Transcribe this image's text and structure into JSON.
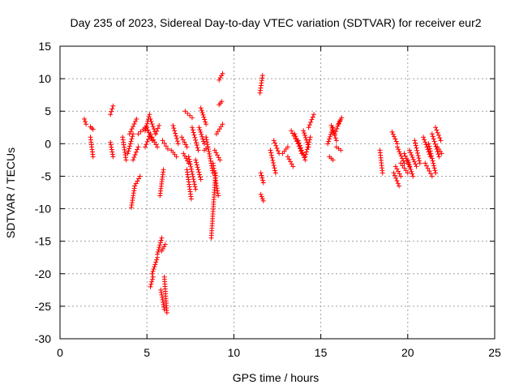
{
  "chart_data": {
    "type": "scatter",
    "title": "Day 235 of 2023, Sidereal Day-to-day VTEC variation (SDTVAR) for receiver eur2",
    "xlabel": "GPS time / hours",
    "ylabel": "SDTVAR / TECUs",
    "xlim": [
      0,
      25
    ],
    "ylim": [
      -30,
      15
    ],
    "xticks": [
      0,
      5,
      10,
      15,
      20,
      25
    ],
    "yticks": [
      -30,
      -25,
      -20,
      -15,
      -10,
      -5,
      0,
      5,
      10,
      15
    ],
    "grid": true,
    "marker": "+",
    "colors": {
      "points": "#ff0000",
      "grid": "#a0a0a0",
      "axes": "#000000"
    },
    "series": [
      {
        "name": "SDTVAR",
        "segments": [
          {
            "x": [
              1.4,
              1.5
            ],
            "y": [
              3.8,
              3.0
            ]
          },
          {
            "x": [
              1.75,
              1.9
            ],
            "y": [
              2.6,
              2.2
            ]
          },
          {
            "x": [
              1.75,
              1.9
            ],
            "y": [
              1.0,
              -2.0
            ]
          },
          {
            "x": [
              2.9,
              3.05
            ],
            "y": [
              4.5,
              5.8
            ]
          },
          {
            "x": [
              2.9,
              3.05
            ],
            "y": [
              0.2,
              -2.0
            ]
          },
          {
            "x": [
              3.6,
              3.8
            ],
            "y": [
              1.0,
              -2.5
            ]
          },
          {
            "x": [
              3.9,
              4.2
            ],
            "y": [
              -1.5,
              1.5
            ]
          },
          {
            "x": [
              4.0,
              4.4
            ],
            "y": [
              1.5,
              3.8
            ]
          },
          {
            "x": [
              4.2,
              4.5
            ],
            "y": [
              -2.5,
              -0.5
            ]
          },
          {
            "x": [
              4.1,
              4.3
            ],
            "y": [
              -9.8,
              -6.5
            ]
          },
          {
            "x": [
              4.3,
              4.6
            ],
            "y": [
              -6.5,
              -5.0
            ]
          },
          {
            "x": [
              4.5,
              4.9
            ],
            "y": [
              1.5,
              2.5
            ]
          },
          {
            "x": [
              4.9,
              5.15
            ],
            "y": [
              2.0,
              4.5
            ]
          },
          {
            "x": [
              4.9,
              5.2
            ],
            "y": [
              -0.5,
              1.5
            ]
          },
          {
            "x": [
              5.0,
              5.3
            ],
            "y": [
              2.5,
              0.5
            ]
          },
          {
            "x": [
              5.2,
              5.5
            ],
            "y": [
              3.8,
              1.5
            ]
          },
          {
            "x": [
              5.3,
              5.6
            ],
            "y": [
              1.0,
              -0.5
            ]
          },
          {
            "x": [
              5.5,
              5.7
            ],
            "y": [
              1.5,
              2.8
            ]
          },
          {
            "x": [
              5.2,
              5.35
            ],
            "y": [
              -22.0,
              -20.5
            ]
          },
          {
            "x": [
              5.3,
              5.6
            ],
            "y": [
              -20.0,
              -17.5
            ]
          },
          {
            "x": [
              5.6,
              5.85
            ],
            "y": [
              -17.0,
              -14.5
            ]
          },
          {
            "x": [
              5.75,
              5.95
            ],
            "y": [
              -8.0,
              -4.0
            ]
          },
          {
            "x": [
              5.85,
              6.05
            ],
            "y": [
              -16.5,
              -15.5
            ]
          },
          {
            "x": [
              5.8,
              6.0
            ],
            "y": [
              -22.5,
              -25.5
            ]
          },
          {
            "x": [
              6.0,
              6.15
            ],
            "y": [
              -20.5,
              -26.0
            ]
          },
          {
            "x": [
              5.9,
              6.2
            ],
            "y": [
              0.5,
              -0.8
            ]
          },
          {
            "x": [
              6.4,
              6.7
            ],
            "y": [
              -1.0,
              -2.0
            ]
          },
          {
            "x": [
              6.5,
              6.8
            ],
            "y": [
              2.8,
              0.0
            ]
          },
          {
            "x": [
              7.0,
              7.3
            ],
            "y": [
              1.0,
              -0.5
            ]
          },
          {
            "x": [
              7.1,
              7.4
            ],
            "y": [
              -1.5,
              -3.0
            ]
          },
          {
            "x": [
              7.3,
              7.55
            ],
            "y": [
              -4.0,
              -8.5
            ]
          },
          {
            "x": [
              7.2,
              7.6
            ],
            "y": [
              5.0,
              4.0
            ]
          },
          {
            "x": [
              7.4,
              7.8
            ],
            "y": [
              -2.0,
              -7.0
            ]
          },
          {
            "x": [
              7.6,
              7.95
            ],
            "y": [
              2.5,
              -1.0
            ]
          },
          {
            "x": [
              7.8,
              8.1
            ],
            "y": [
              -2.5,
              -5.5
            ]
          },
          {
            "x": [
              8.0,
              8.3
            ],
            "y": [
              2.5,
              0.0
            ]
          },
          {
            "x": [
              8.1,
              8.4
            ],
            "y": [
              5.5,
              3.0
            ]
          },
          {
            "x": [
              8.3,
              8.5
            ],
            "y": [
              -1.0,
              -0.5
            ]
          },
          {
            "x": [
              8.4,
              8.8
            ],
            "y": [
              1.0,
              -4.5
            ]
          },
          {
            "x": [
              8.7,
              8.95
            ],
            "y": [
              -14.5,
              -4.5
            ]
          },
          {
            "x": [
              8.8,
              9.1
            ],
            "y": [
              -3.0,
              -8.0
            ]
          },
          {
            "x": [
              8.9,
              9.2
            ],
            "y": [
              -1.0,
              -2.5
            ]
          },
          {
            "x": [
              9.0,
              9.35
            ],
            "y": [
              1.5,
              3.0
            ]
          },
          {
            "x": [
              9.15,
              9.3
            ],
            "y": [
              6.0,
              6.5
            ]
          },
          {
            "x": [
              9.15,
              9.35
            ],
            "y": [
              9.8,
              10.8
            ]
          },
          {
            "x": [
              11.5,
              11.65
            ],
            "y": [
              7.8,
              10.5
            ]
          },
          {
            "x": [
              11.55,
              11.7
            ],
            "y": [
              -4.5,
              -6.0
            ]
          },
          {
            "x": [
              11.55,
              11.7
            ],
            "y": [
              -7.8,
              -8.8
            ]
          },
          {
            "x": [
              12.1,
              12.4
            ],
            "y": [
              -1.0,
              -4.5
            ]
          },
          {
            "x": [
              12.3,
              12.6
            ],
            "y": [
              0.5,
              -1.5
            ]
          },
          {
            "x": [
              12.8,
              13.1
            ],
            "y": [
              -1.5,
              -0.5
            ]
          },
          {
            "x": [
              13.1,
              13.4
            ],
            "y": [
              -2.0,
              -3.5
            ]
          },
          {
            "x": [
              13.3,
              13.7
            ],
            "y": [
              2.0,
              0.0
            ]
          },
          {
            "x": [
              13.5,
              13.9
            ],
            "y": [
              1.5,
              -1.5
            ]
          },
          {
            "x": [
              13.7,
              14.1
            ],
            "y": [
              0.5,
              -2.5
            ]
          },
          {
            "x": [
              14.0,
              14.3
            ],
            "y": [
              2.0,
              -0.5
            ]
          },
          {
            "x": [
              14.1,
              14.4
            ],
            "y": [
              -2.0,
              1.0
            ]
          },
          {
            "x": [
              14.3,
              14.6
            ],
            "y": [
              2.5,
              4.5
            ]
          },
          {
            "x": [
              15.4,
              15.7
            ],
            "y": [
              0.0,
              2.5
            ]
          },
          {
            "x": [
              15.5,
              15.7
            ],
            "y": [
              -2.0,
              -2.5
            ]
          },
          {
            "x": [
              15.6,
              15.9
            ],
            "y": [
              2.8,
              0.5
            ]
          },
          {
            "x": [
              15.8,
              16.1
            ],
            "y": [
              1.5,
              3.5
            ]
          },
          {
            "x": [
              15.9,
              16.15
            ],
            "y": [
              -0.5,
              -1.0
            ]
          },
          {
            "x": [
              16.0,
              16.2
            ],
            "y": [
              3.0,
              4.0
            ]
          },
          {
            "x": [
              18.4,
              18.55
            ],
            "y": [
              -1.0,
              -4.5
            ]
          },
          {
            "x": [
              19.1,
              19.4
            ],
            "y": [
              1.8,
              0.0
            ]
          },
          {
            "x": [
              19.2,
              19.5
            ],
            "y": [
              -4.5,
              -6.5
            ]
          },
          {
            "x": [
              19.3,
              19.6
            ],
            "y": [
              -3.5,
              -5.0
            ]
          },
          {
            "x": [
              19.4,
              19.8
            ],
            "y": [
              -0.5,
              -3.0
            ]
          },
          {
            "x": [
              19.6,
              20.0
            ],
            "y": [
              -3.0,
              -4.5
            ]
          },
          {
            "x": [
              19.8,
              20.1
            ],
            "y": [
              -1.5,
              -3.5
            ]
          },
          {
            "x": [
              20.0,
              20.3
            ],
            "y": [
              -2.5,
              -5.0
            ]
          },
          {
            "x": [
              20.1,
              20.5
            ],
            "y": [
              -1.0,
              -3.5
            ]
          },
          {
            "x": [
              20.4,
              20.7
            ],
            "y": [
              0.5,
              -3.0
            ]
          },
          {
            "x": [
              20.9,
              21.3
            ],
            "y": [
              1.0,
              -2.0
            ]
          },
          {
            "x": [
              21.0,
              21.4
            ],
            "y": [
              -3.0,
              -5.0
            ]
          },
          {
            "x": [
              21.2,
              21.6
            ],
            "y": [
              0.0,
              -4.5
            ]
          },
          {
            "x": [
              21.4,
              21.8
            ],
            "y": [
              1.5,
              -2.0
            ]
          },
          {
            "x": [
              21.6,
              21.9
            ],
            "y": [
              2.5,
              0.5
            ]
          },
          {
            "x": [
              21.7,
              21.95
            ],
            "y": [
              -0.5,
              -1.5
            ]
          }
        ]
      }
    ]
  }
}
